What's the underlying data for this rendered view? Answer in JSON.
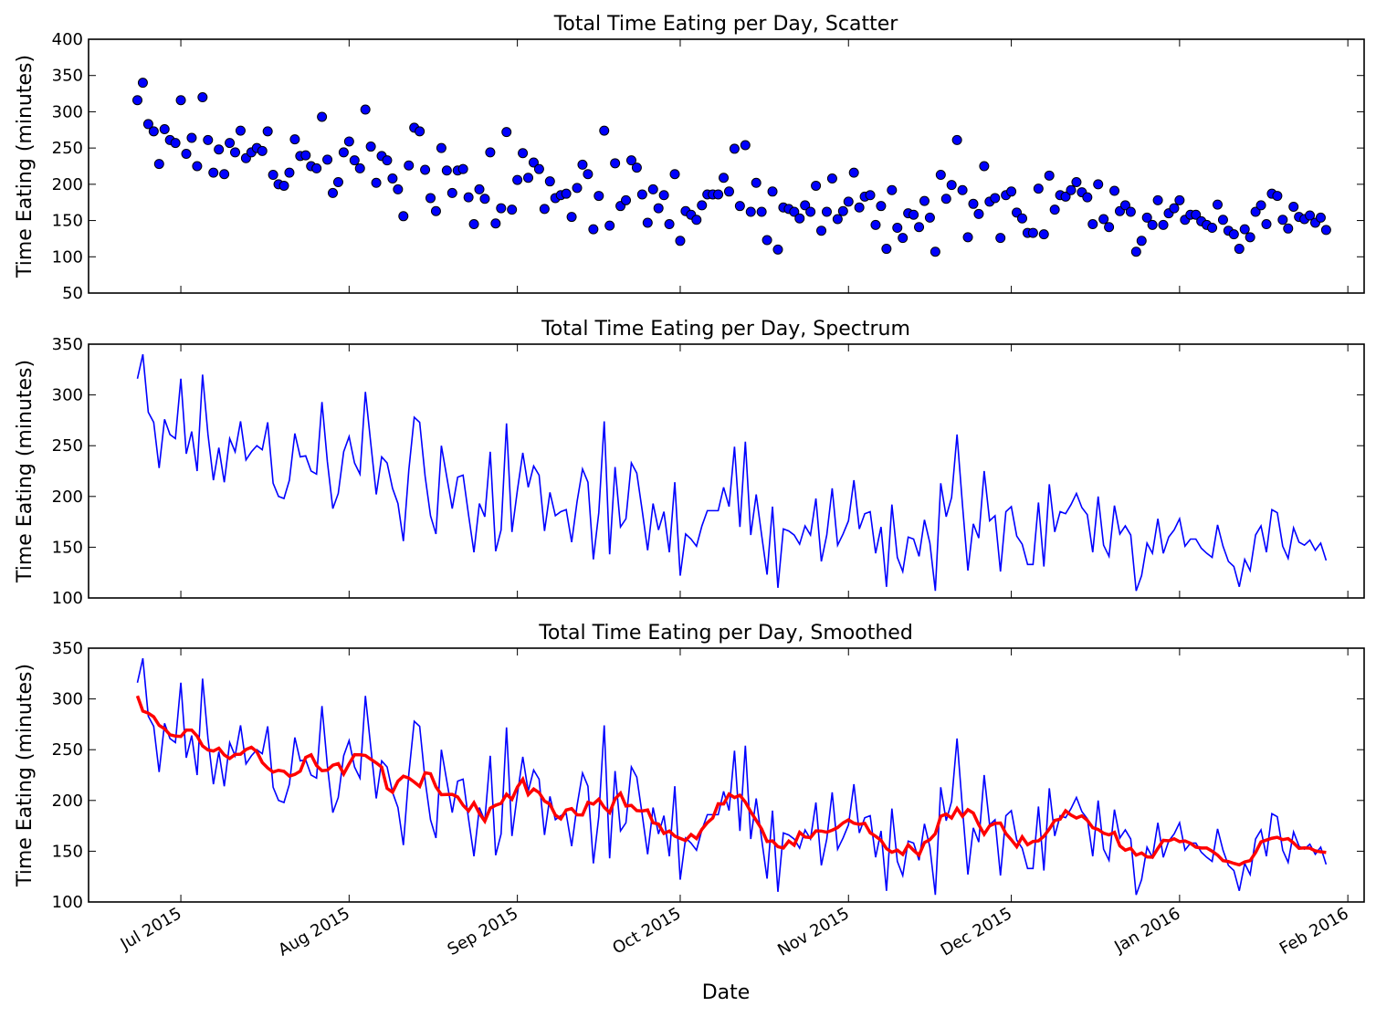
{
  "figure": {
    "xlabel": "Date",
    "x_ticks": [
      "Jul 2015",
      "Aug 2015",
      "Sep 2015",
      "Oct 2015",
      "Nov 2015",
      "Dec 2015",
      "Jan 2016",
      "Feb 2016"
    ]
  },
  "chart_data": [
    {
      "type": "scatter",
      "title": "Total Time Eating per Day, Scatter",
      "xlabel": "Date",
      "ylabel": "Time Eating (minutes)",
      "xlim": [
        "2015-06-14",
        "2016-02-04"
      ],
      "ylim": [
        50,
        400
      ],
      "y_ticks": [
        50,
        100,
        150,
        200,
        250,
        300,
        350,
        400
      ],
      "grid": false,
      "colors": {
        "marker": "#0000ff",
        "edge": "#000000"
      }
    },
    {
      "type": "line",
      "title": "Total Time Eating per Day, Spectrum",
      "xlabel": "Date",
      "ylabel": "Time Eating (minutes)",
      "xlim": [
        "2015-06-14",
        "2016-02-04"
      ],
      "ylim": [
        100,
        350
      ],
      "y_ticks": [
        100,
        150,
        200,
        250,
        300,
        350
      ],
      "grid": false,
      "colors": {
        "line": "#0000ff"
      }
    },
    {
      "type": "line",
      "title": "Total Time Eating per Day, Smoothed",
      "xlabel": "Date",
      "ylabel": "Time Eating (minutes)",
      "xlim": [
        "2015-06-14",
        "2016-02-04"
      ],
      "ylim": [
        100,
        350
      ],
      "y_ticks": [
        100,
        150,
        200,
        250,
        300,
        350
      ],
      "grid": false,
      "colors": {
        "raw": "#0000ff",
        "smoothed": "#ff0000"
      }
    }
  ],
  "series": {
    "start_date": "2015-06-23",
    "daily_values": [
      316,
      340,
      283,
      273,
      228,
      276,
      261,
      257,
      316,
      242,
      264,
      225,
      320,
      261,
      216,
      248,
      214,
      257,
      244,
      274,
      236,
      244,
      250,
      246,
      273,
      213,
      200,
      198,
      216,
      262,
      239,
      240,
      225,
      222,
      293,
      234,
      188,
      203,
      244,
      259,
      233,
      222,
      303,
      252,
      202,
      239,
      233,
      208,
      193,
      156,
      226,
      278,
      273,
      220,
      181,
      163,
      250,
      219,
      188,
      219,
      221,
      182,
      145,
      193,
      180,
      244,
      146,
      167,
      272,
      165,
      206,
      243,
      209,
      230,
      221,
      166,
      204,
      181,
      185,
      187,
      155,
      195,
      227,
      214,
      138,
      184,
      274,
      143,
      229,
      170,
      178,
      233,
      223,
      186,
      147,
      193,
      167,
      185,
      145,
      214,
      122,
      163,
      158,
      151,
      171,
      186,
      186,
      186,
      209,
      190,
      249,
      170,
      254,
      162,
      202,
      162,
      123,
      190,
      110,
      168,
      166,
      162,
      153,
      171,
      162,
      198,
      136,
      162,
      208,
      152,
      163,
      176,
      216,
      168,
      183,
      185,
      144,
      170,
      111,
      192,
      140,
      126,
      160,
      158,
      141,
      177,
      154,
      107,
      213,
      180,
      199,
      261,
      192,
      127,
      173,
      159,
      225,
      176,
      181,
      126,
      185,
      190,
      161,
      153,
      133,
      133,
      194,
      131,
      212,
      165,
      185,
      183,
      192,
      203,
      189,
      182,
      145,
      200,
      152,
      141,
      191,
      163,
      171,
      162,
      107,
      122,
      154,
      144,
      178,
      144,
      160,
      167,
      178,
      151,
      158,
      158,
      149,
      144,
      140,
      172,
      151,
      136,
      131,
      111,
      138,
      127,
      162,
      171,
      145,
      187,
      184,
      151,
      139,
      169,
      155,
      152,
      157,
      147,
      154,
      137
    ]
  }
}
